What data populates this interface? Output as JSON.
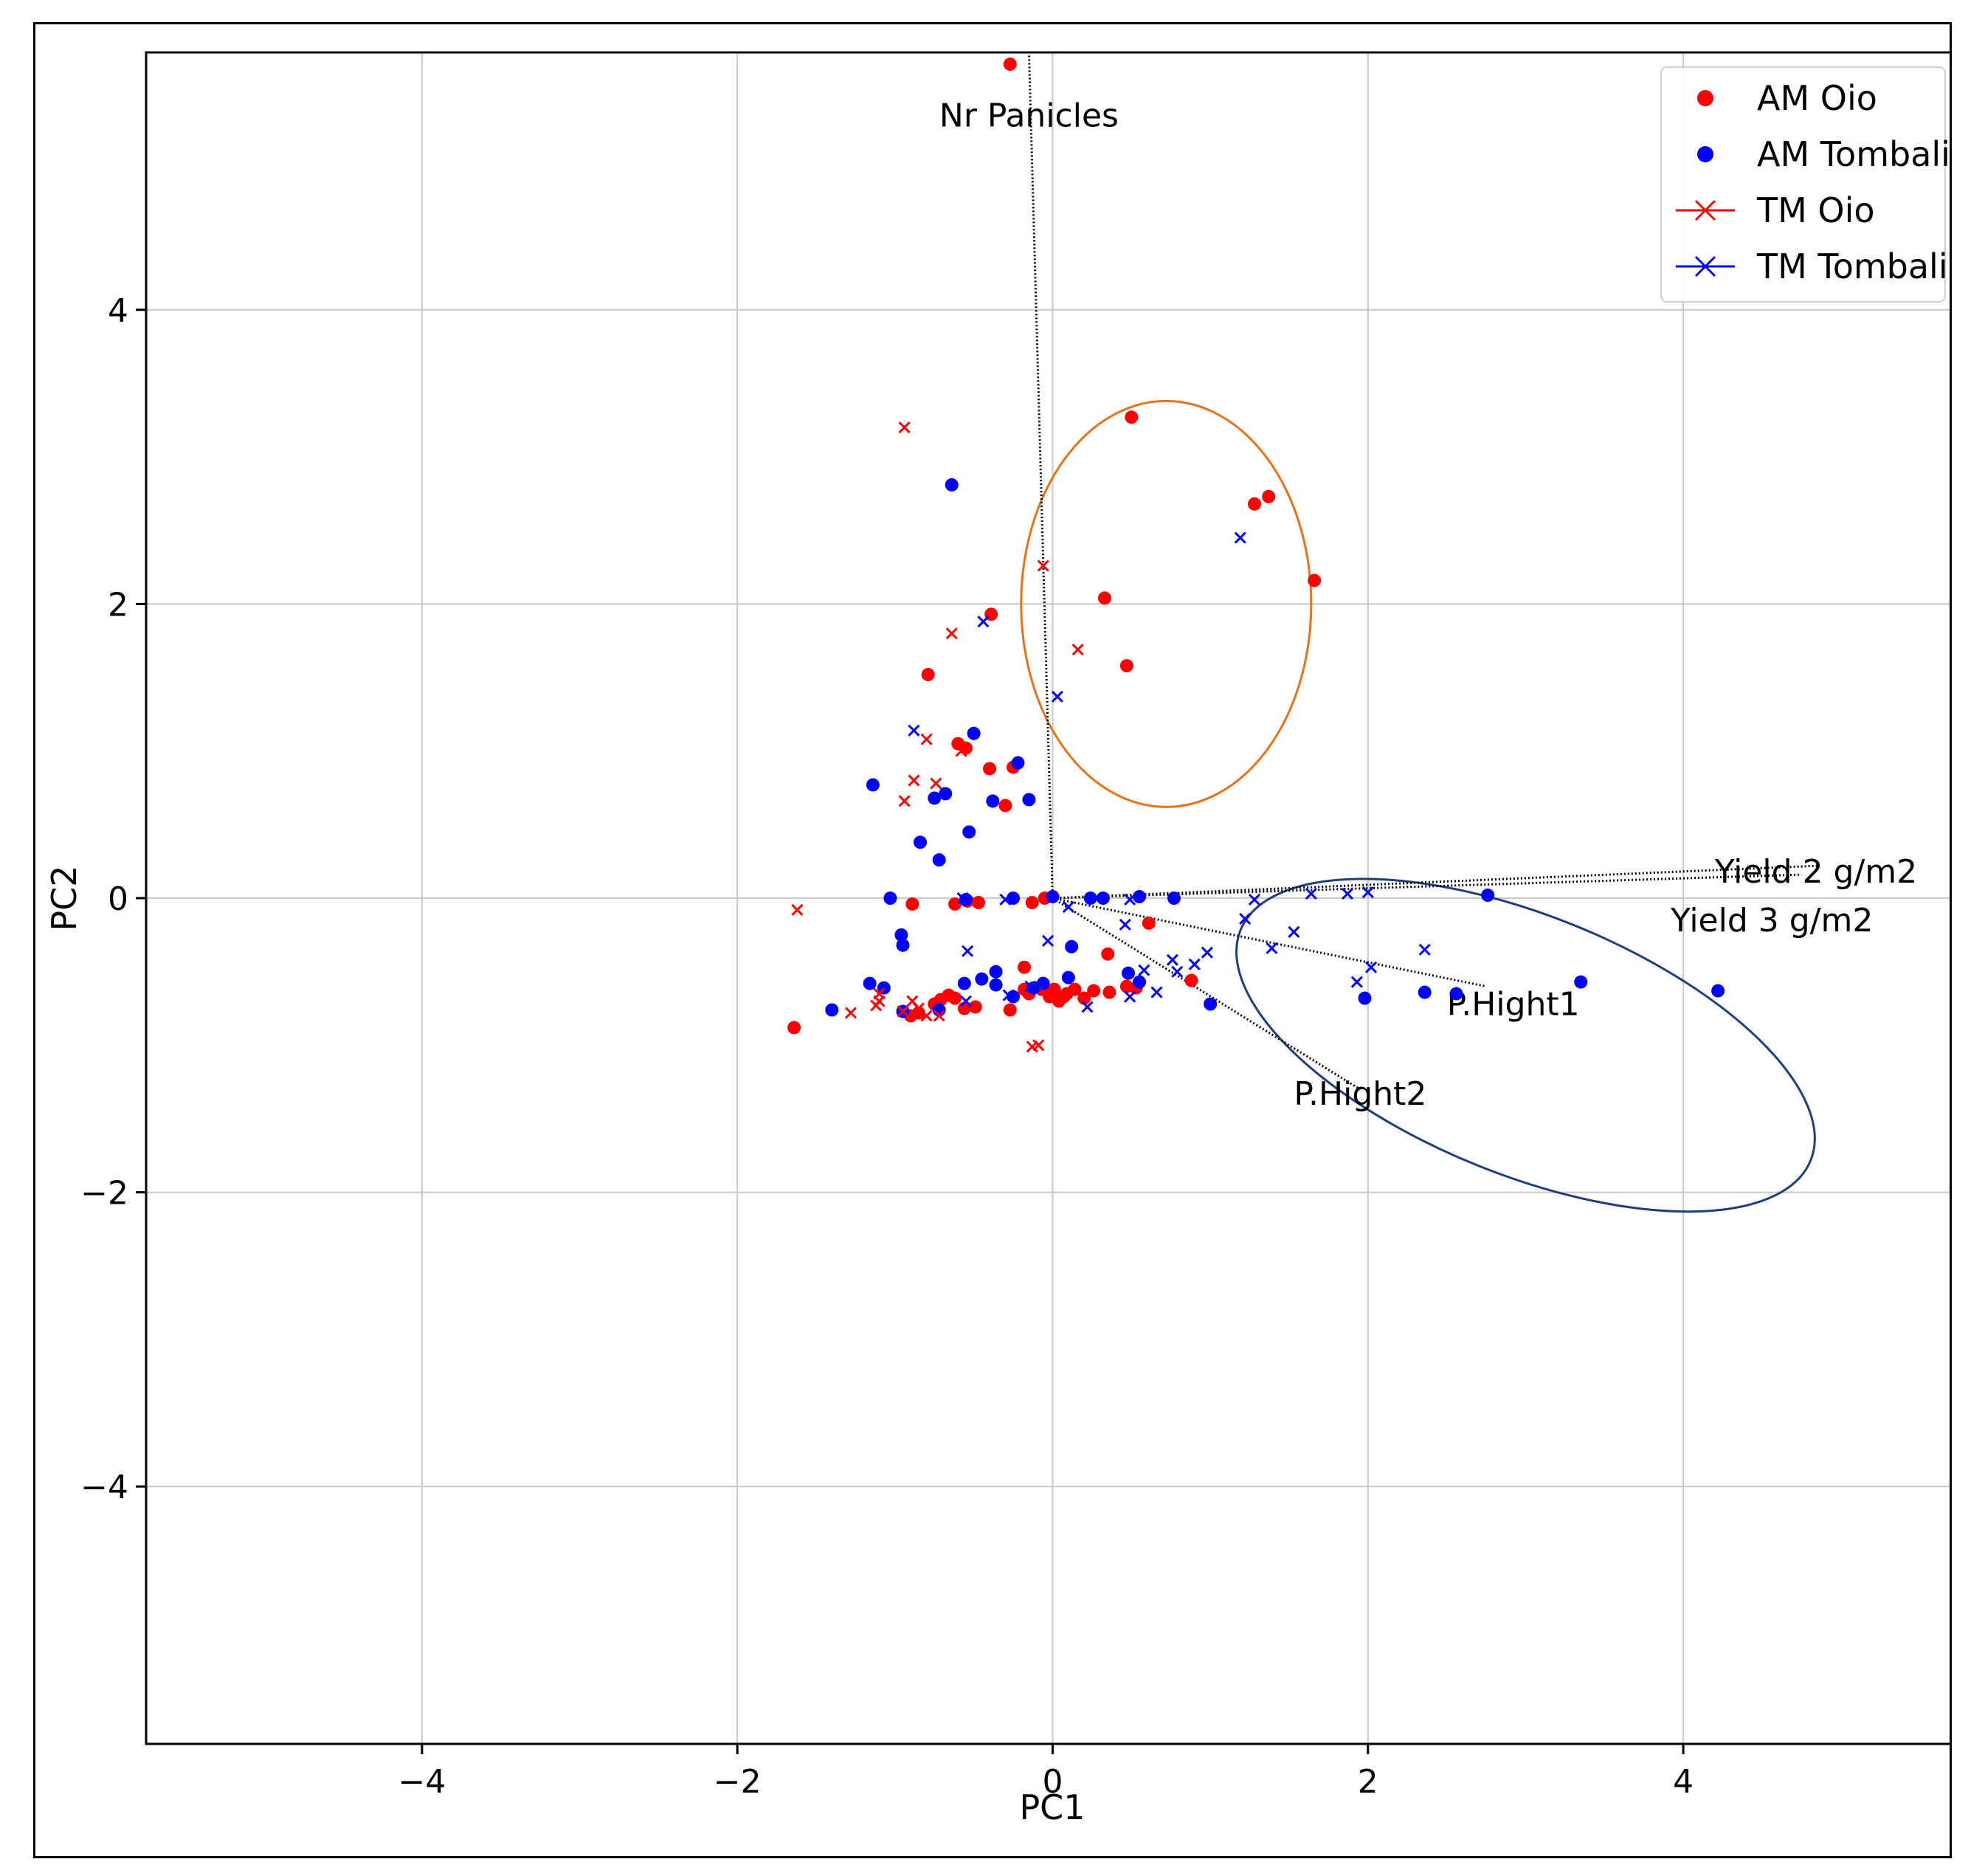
{
  "chart_data": {
    "type": "scatter",
    "title": "",
    "xlabel": "PC1",
    "ylabel": "PC2",
    "xlim": [
      -5.75,
      5.75
    ],
    "ylim": [
      -5.75,
      5.75
    ],
    "xticks": [
      -4,
      -2,
      0,
      2,
      4
    ],
    "yticks": [
      -4,
      -2,
      0,
      2,
      4
    ],
    "xtick_labels": [
      "−4",
      "−2",
      "0",
      "2",
      "4"
    ],
    "ytick_labels": [
      "−4",
      "−2",
      "0",
      "2",
      "4"
    ],
    "grid": true,
    "legend_position": "top-right",
    "colors": {
      "oio": "#ff0000",
      "tombali": "#0000ff",
      "ellipse_orange": "#e8721c",
      "ellipse_navy": "#1f3f7a",
      "loading": "#000000"
    },
    "series": [
      {
        "name": "AM Oio",
        "marker": "circle",
        "color": "#ff0000",
        "points": [
          [
            -0.27,
            5.67
          ],
          [
            0.5,
            3.27
          ],
          [
            1.28,
            2.68
          ],
          [
            1.37,
            2.73
          ],
          [
            1.66,
            2.16
          ],
          [
            0.33,
            2.04
          ],
          [
            0.47,
            1.58
          ],
          [
            -0.39,
            1.93
          ],
          [
            -0.79,
            1.52
          ],
          [
            -0.6,
            1.05
          ],
          [
            -0.55,
            1.02
          ],
          [
            -0.4,
            0.88
          ],
          [
            -0.25,
            0.89
          ],
          [
            -0.3,
            0.63
          ],
          [
            -0.62,
            -0.04
          ],
          [
            -0.54,
            -0.02
          ],
          [
            -0.47,
            -0.03
          ],
          [
            -0.89,
            -0.04
          ],
          [
            -0.13,
            -0.03
          ],
          [
            -0.05,
            0.0
          ],
          [
            -1.64,
            -0.88
          ],
          [
            0.35,
            -0.38
          ],
          [
            0.61,
            -0.17
          ],
          [
            -0.18,
            -0.47
          ],
          [
            0.88,
            -0.56
          ],
          [
            -0.27,
            -0.76
          ],
          [
            -0.49,
            -0.74
          ],
          [
            -0.56,
            -0.75
          ],
          [
            -0.62,
            -0.68
          ],
          [
            -0.71,
            -0.69
          ],
          [
            -0.75,
            -0.72
          ],
          [
            -0.85,
            -0.78
          ],
          [
            -0.9,
            -0.8
          ],
          [
            -0.18,
            -0.62
          ],
          [
            -0.15,
            -0.65
          ],
          [
            -0.07,
            -0.62
          ],
          [
            -0.02,
            -0.67
          ],
          [
            0.04,
            -0.7
          ],
          [
            0.09,
            -0.65
          ],
          [
            0.14,
            -0.62
          ],
          [
            0.2,
            -0.68
          ],
          [
            0.26,
            -0.63
          ],
          [
            0.36,
            -0.64
          ],
          [
            0.47,
            -0.6
          ],
          [
            0.53,
            -0.61
          ],
          [
            -0.66,
            -0.66
          ],
          [
            0.01,
            -0.62
          ],
          [
            0.07,
            -0.67
          ]
        ]
      },
      {
        "name": "AM Tombali",
        "marker": "circle",
        "color": "#0000ff",
        "points": [
          [
            -0.64,
            2.81
          ],
          [
            -0.5,
            1.12
          ],
          [
            -0.22,
            0.92
          ],
          [
            -1.14,
            0.77
          ],
          [
            -0.68,
            0.71
          ],
          [
            -0.75,
            0.68
          ],
          [
            -0.15,
            0.67
          ],
          [
            -0.38,
            0.66
          ],
          [
            -0.53,
            0.45
          ],
          [
            -0.84,
            0.38
          ],
          [
            -0.72,
            0.26
          ],
          [
            -1.03,
            0.0
          ],
          [
            -0.55,
            -0.01
          ],
          [
            -0.25,
            0.0
          ],
          [
            0.0,
            0.01
          ],
          [
            0.24,
            0.0
          ],
          [
            0.32,
            0.0
          ],
          [
            0.55,
            0.01
          ],
          [
            0.77,
            0.0
          ],
          [
            2.76,
            0.02
          ],
          [
            -0.96,
            -0.25
          ],
          [
            -0.95,
            -0.32
          ],
          [
            0.12,
            -0.33
          ],
          [
            -1.16,
            -0.58
          ],
          [
            -1.07,
            -0.61
          ],
          [
            -0.36,
            -0.59
          ],
          [
            -0.45,
            -0.55
          ],
          [
            -0.56,
            -0.58
          ],
          [
            -0.36,
            -0.5
          ],
          [
            -0.06,
            -0.58
          ],
          [
            -0.12,
            -0.61
          ],
          [
            0.1,
            -0.54
          ],
          [
            0.48,
            -0.51
          ],
          [
            0.55,
            -0.57
          ],
          [
            -0.95,
            -0.77
          ],
          [
            -1.4,
            -0.76
          ],
          [
            -0.72,
            -0.76
          ],
          [
            1.0,
            -0.72
          ],
          [
            1.98,
            -0.68
          ],
          [
            2.36,
            -0.64
          ],
          [
            2.56,
            -0.65
          ],
          [
            3.35,
            -0.57
          ],
          [
            4.22,
            -0.63
          ],
          [
            -0.25,
            -0.67
          ]
        ]
      },
      {
        "name": "TM Oio",
        "marker": "x",
        "color": "#ff0000",
        "points": [
          [
            -0.94,
            3.2
          ],
          [
            -0.06,
            2.26
          ],
          [
            0.16,
            1.69
          ],
          [
            -0.64,
            1.8
          ],
          [
            -0.8,
            1.08
          ],
          [
            -0.74,
            0.78
          ],
          [
            -0.88,
            0.8
          ],
          [
            -0.94,
            0.66
          ],
          [
            -1.62,
            -0.08
          ],
          [
            -0.58,
            1.0
          ],
          [
            -1.1,
            -0.65
          ],
          [
            -1.12,
            -0.73
          ],
          [
            -1.28,
            -0.78
          ],
          [
            -0.89,
            -0.7
          ],
          [
            -0.85,
            -0.75
          ],
          [
            -0.8,
            -0.8
          ],
          [
            -0.72,
            -0.8
          ],
          [
            -0.13,
            -1.01
          ],
          [
            -0.09,
            -1.0
          ],
          [
            -1.1,
            -0.7
          ],
          [
            -0.95,
            -0.77
          ]
        ]
      },
      {
        "name": "TM Tombali",
        "marker": "x",
        "color": "#0000ff",
        "points": [
          [
            1.19,
            2.45
          ],
          [
            -0.44,
            1.88
          ],
          [
            0.03,
            1.37
          ],
          [
            -0.88,
            1.14
          ],
          [
            -0.57,
            0.0
          ],
          [
            -0.3,
            -0.01
          ],
          [
            0.1,
            -0.06
          ],
          [
            0.46,
            -0.18
          ],
          [
            0.49,
            -0.01
          ],
          [
            1.28,
            -0.01
          ],
          [
            1.64,
            0.03
          ],
          [
            1.87,
            0.03
          ],
          [
            2.0,
            0.04
          ],
          [
            1.22,
            -0.14
          ],
          [
            1.53,
            -0.23
          ],
          [
            1.39,
            -0.34
          ],
          [
            0.98,
            -0.37
          ],
          [
            0.76,
            -0.42
          ],
          [
            0.58,
            -0.49
          ],
          [
            0.79,
            -0.5
          ],
          [
            -0.54,
            -0.36
          ],
          [
            -0.03,
            -0.29
          ],
          [
            0.9,
            -0.45
          ],
          [
            2.36,
            -0.35
          ],
          [
            2.02,
            -0.47
          ],
          [
            1.93,
            -0.57
          ],
          [
            0.66,
            -0.64
          ],
          [
            0.49,
            -0.67
          ],
          [
            0.22,
            -0.74
          ],
          [
            -0.28,
            -0.66
          ],
          [
            -0.14,
            -0.6
          ],
          [
            -0.55,
            -0.7
          ]
        ]
      }
    ],
    "loadings": [
      {
        "label": "Nr Panicles",
        "end": [
          -0.15,
          5.75
        ],
        "label_at": [
          -0.15,
          5.32
        ],
        "anchor": "middle"
      },
      {
        "label": "Yield 2 g/m2",
        "end": [
          4.85,
          0.22
        ],
        "label_at": [
          4.2,
          0.18
        ],
        "anchor": "start"
      },
      {
        "label": "Yield 3 g/m2",
        "end": [
          4.75,
          0.16
        ],
        "label_at": [
          3.92,
          -0.15
        ],
        "anchor": "start"
      },
      {
        "label": "P.Hight1",
        "end": [
          2.75,
          -0.6
        ],
        "label_at": [
          2.5,
          -0.72
        ],
        "anchor": "start"
      },
      {
        "label": "P.Hight2",
        "end": [
          1.95,
          -1.3
        ],
        "label_at": [
          1.53,
          -1.33
        ],
        "anchor": "start"
      }
    ],
    "ellipses": [
      {
        "name": "orange-cluster",
        "color": "#e8721c",
        "center": [
          0.72,
          2.0
        ],
        "half_width": 0.92,
        "half_height": 1.38,
        "angle_deg": 0
      },
      {
        "name": "navy-cluster",
        "color": "#1f3f7a",
        "center": [
          3.0,
          -1.0
        ],
        "half_width": 1.95,
        "half_height": 0.88,
        "angle_deg": -22
      }
    ]
  }
}
